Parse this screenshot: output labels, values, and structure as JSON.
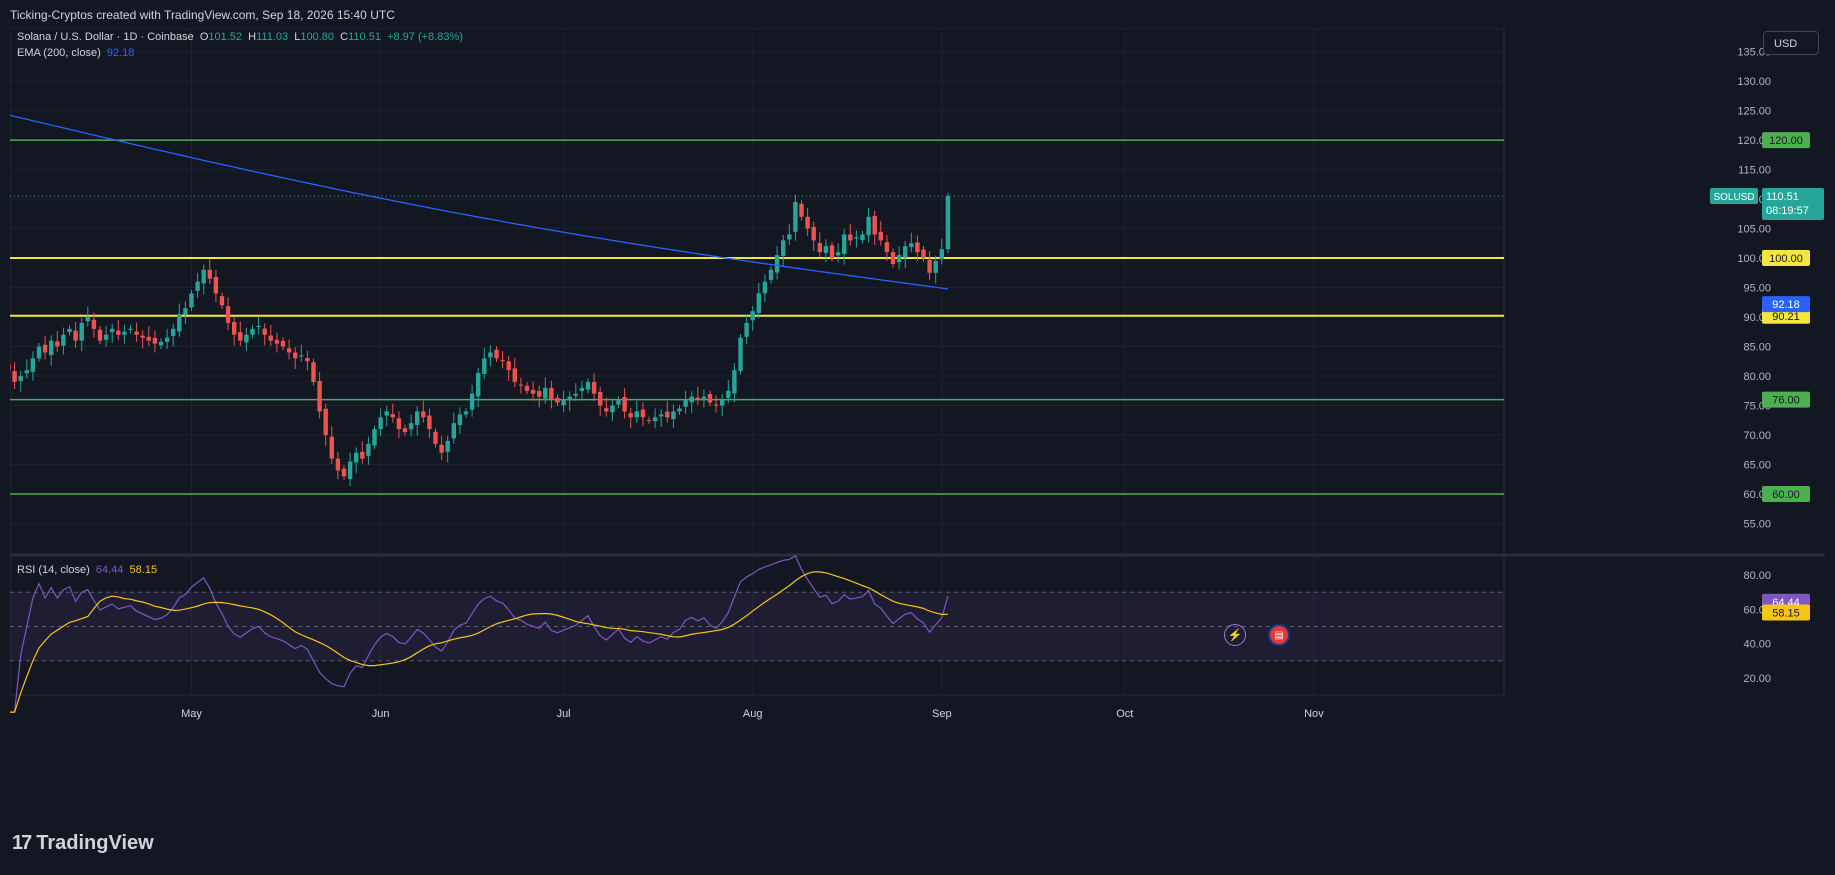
{
  "header": {
    "attribution": "Ticking-Cryptos created with TradingView.com, Sep 18, 2026 15:40 UTC"
  },
  "legend": {
    "symbol": "Solana / U.S. Dollar · 1D · Coinbase",
    "o_label": "O",
    "o_value": "101.52",
    "h_label": "H",
    "h_value": "111.03",
    "l_label": "L",
    "l_value": "100.80",
    "c_label": "C",
    "c_value": "110.51",
    "change": "+8.97 (+8.83%)",
    "ema_label": "EMA (200, close)",
    "ema_value": "92.18",
    "rsi_label": "RSI (14, close)",
    "rsi_value": "64.44",
    "rsi_ma_value": "58.15"
  },
  "currency_button": "USD",
  "footer": {
    "brand": "TradingView",
    "logo": "17"
  },
  "events": [
    {
      "icon": "lightning-icon"
    },
    {
      "icon": "us-flag-icon"
    }
  ],
  "colors": {
    "up": "#26a69a",
    "down": "#ef5350",
    "ema": "#2962ff",
    "support_green": "#4caf50",
    "level_yellow": "#f5e63d",
    "rsi": "#7e57c2",
    "rsi_ma": "#f5c518"
  },
  "chart_data": {
    "type": "candlestick",
    "symbol": "SOLUSD",
    "price_axis": {
      "ylim": [
        50,
        139
      ],
      "ticks": [
        55,
        60,
        65,
        70,
        75,
        80,
        85,
        90,
        95,
        100,
        105,
        110,
        115,
        120,
        125,
        130,
        135
      ],
      "tick_labels": [
        "55.00",
        "60.00",
        "65.00",
        "70.00",
        "75.00",
        "80.00",
        "85.00",
        "90.00",
        "95.00",
        "100.00",
        "105.00",
        "110.00",
        "115.00",
        "120.00",
        "125.00",
        "130.00",
        "135.00"
      ]
    },
    "x_axis": {
      "labels": [
        "pr",
        "May",
        "Jun",
        "Jul",
        "Aug",
        "Sep",
        "Oct",
        "Nov"
      ],
      "label_days": [
        0,
        30,
        61,
        91,
        122,
        153,
        183,
        214
      ]
    },
    "horizontal_levels": [
      {
        "value": 120.0,
        "label": "120.00",
        "color": "green"
      },
      {
        "value": 100.0,
        "label": "100.00",
        "color": "yellow"
      },
      {
        "value": 90.21,
        "label": "90.21",
        "color": "yellow"
      },
      {
        "value": 76.0,
        "label": "76.00",
        "color": "green"
      },
      {
        "value": 60.0,
        "label": "60.00",
        "color": "green"
      }
    ],
    "last_price": {
      "symbol": "SOLUSD",
      "value": 110.51,
      "label": "110.51",
      "countdown": "08:19:57"
    },
    "ema_badge": {
      "value": 92.18,
      "label": "92.18"
    },
    "closes": [
      81,
      79,
      80,
      81,
      83,
      85,
      84,
      86,
      85,
      87,
      88,
      86,
      89,
      90,
      88,
      86,
      87,
      88,
      87,
      87.5,
      88,
      87,
      86.5,
      86,
      85.5,
      85.8,
      86.5,
      88,
      90.5,
      91.5,
      94,
      96,
      98,
      96.5,
      94,
      92,
      89,
      87,
      86,
      87,
      88,
      88.5,
      87,
      86,
      85.5,
      85,
      84,
      83,
      83.5,
      82.5,
      79,
      74,
      70,
      66,
      64,
      63,
      65.5,
      67,
      66,
      68.5,
      71,
      73,
      74,
      73,
      71,
      70.5,
      72,
      74,
      73,
      71,
      68.5,
      67,
      69,
      72,
      73.5,
      74,
      77,
      80.5,
      83,
      84,
      83,
      82.5,
      81,
      79,
      78.5,
      77.5,
      77,
      76.5,
      78,
      76,
      75.5,
      76,
      76.5,
      77,
      78,
      79,
      77,
      75,
      74,
      75,
      76,
      74,
      73,
      74,
      73,
      72.5,
      73,
      73.5,
      73,
      74,
      74.5,
      76,
      76.5,
      76,
      76.5,
      75.5,
      75,
      76,
      77.5,
      81,
      86.5,
      89,
      91,
      94,
      96,
      98,
      100.5,
      103,
      104,
      109.5,
      107,
      105,
      103,
      101,
      102,
      100,
      101,
      104,
      103,
      103.5,
      104,
      107,
      104,
      103,
      101,
      99,
      100.5,
      102,
      102.5,
      101,
      100,
      97.5,
      99.5,
      101.5,
      110.51
    ],
    "ema_start": 124.5,
    "ema_end": 92.18,
    "rsi_panel": {
      "ylim": [
        10,
        90
      ],
      "ticks": [
        20,
        40,
        60,
        80
      ],
      "tick_labels": [
        "20.00",
        "40.00",
        "60.00",
        "80.00"
      ],
      "bands": [
        30,
        50,
        70
      ],
      "rsi_last": 64.44,
      "rsi_ma_last": 58.15
    }
  }
}
